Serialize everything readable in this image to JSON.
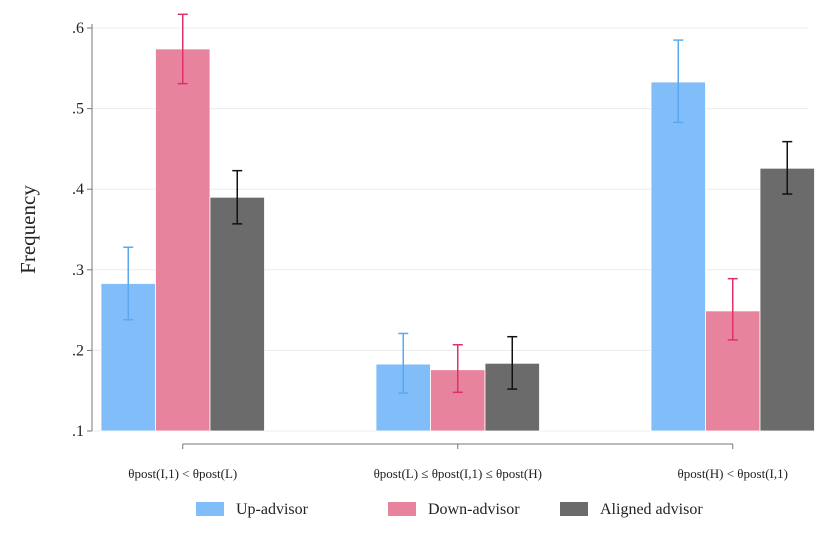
{
  "chart_data": {
    "type": "bar",
    "title": "",
    "xlabel": "",
    "ylabel": "Frequency",
    "ylim": [
      0.1,
      0.6
    ],
    "yticks": [
      ".1",
      ".2",
      ".3",
      ".4",
      ".5",
      ".6"
    ],
    "ytick_values": [
      0.1,
      0.2,
      0.3,
      0.4,
      0.5,
      0.6
    ],
    "grid": true,
    "legend_position": "bottom",
    "categories": [
      "θpost(I,1) < θpost(L)",
      "θpost(L) ≤ θpost(I,1) ≤ θpost(H)",
      "θpost(H) < θpost(I,1)"
    ],
    "series": [
      {
        "name": "Up-advisor",
        "color": "#80bdf9",
        "error_color": "#5aa8f0",
        "values": [
          0.283,
          0.183,
          0.533
        ],
        "error_low": [
          0.238,
          0.147,
          0.483
        ],
        "error_high": [
          0.328,
          0.221,
          0.585
        ]
      },
      {
        "name": "Down-advisor",
        "color": "#e8839e",
        "error_color": "#e0306a",
        "values": [
          0.574,
          0.176,
          0.249
        ],
        "error_low": [
          0.531,
          0.148,
          0.213
        ],
        "error_high": [
          0.617,
          0.207,
          0.289
        ]
      },
      {
        "name": "Aligned advisor",
        "color": "#6b6b6b",
        "error_color": "#111111",
        "values": [
          0.39,
          0.184,
          0.426
        ],
        "error_low": [
          0.357,
          0.152,
          0.394
        ],
        "error_high": [
          0.423,
          0.217,
          0.459
        ]
      }
    ]
  }
}
